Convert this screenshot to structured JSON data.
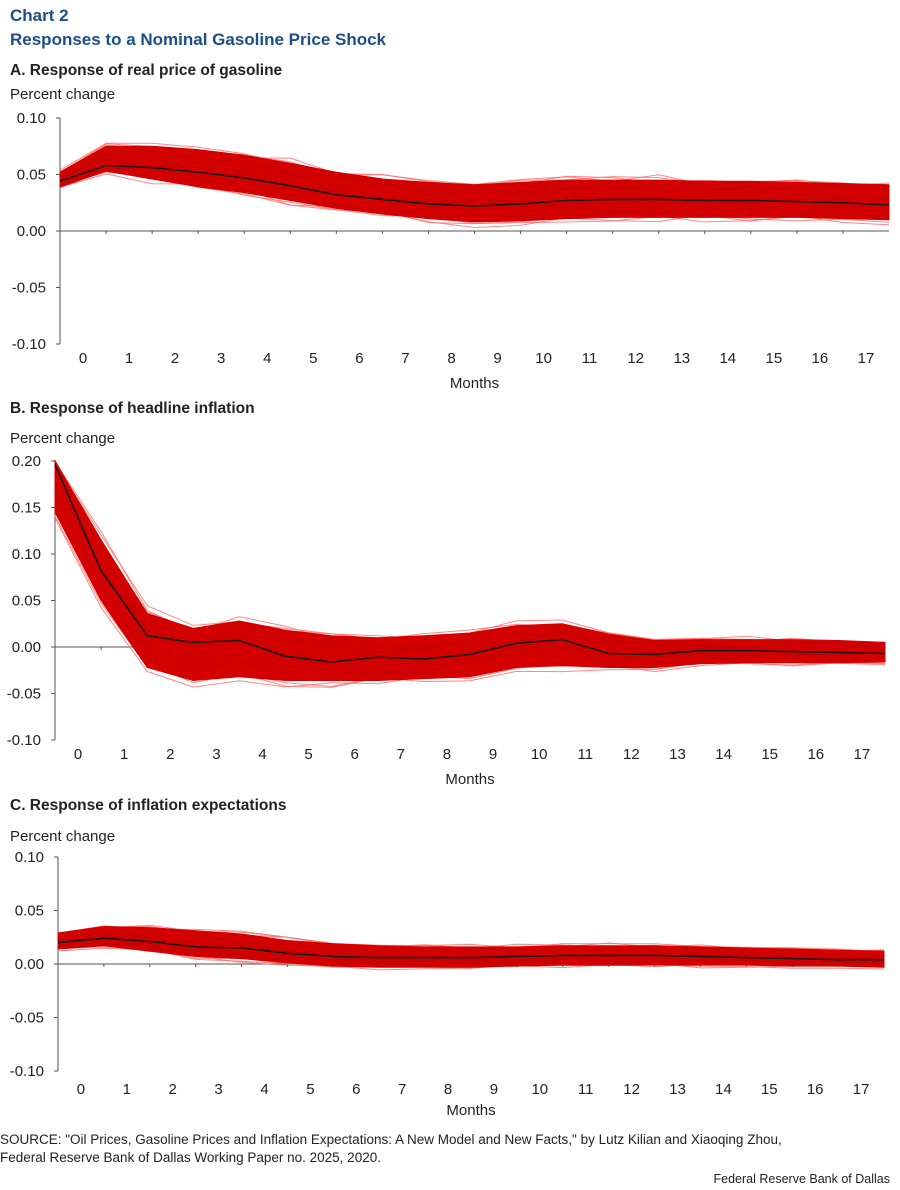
{
  "header": {
    "label": "Chart 2",
    "title": "Responses to a Nominal Gasoline Price Shock"
  },
  "colors": {
    "band": "#d40000",
    "band_edge": "#ff6a6a",
    "median": "#1a1a1a",
    "title": "#1d4e89",
    "axis": "#555555"
  },
  "chart_data": [
    {
      "type": "area",
      "panel_title": "A. Response of real price of gasoline",
      "ylabel": "Percent change",
      "xlabel": "Months",
      "ylim": [
        -0.1,
        0.1
      ],
      "yticks": [
        "0.10",
        "0.05",
        "0.00",
        "-0.05",
        "-0.10"
      ],
      "x": [
        0,
        1,
        2,
        3,
        4,
        5,
        6,
        7,
        8,
        9,
        10,
        11,
        12,
        13,
        14,
        15,
        16,
        17,
        18
      ],
      "xtick_labels": [
        "0",
        "1",
        "2",
        "3",
        "4",
        "5",
        "6",
        "7",
        "8",
        "9",
        "10",
        "11",
        "12",
        "13",
        "14",
        "15",
        "16",
        "17"
      ],
      "series": [
        {
          "role": "median",
          "values": [
            0.044,
            0.058,
            0.056,
            0.052,
            0.047,
            0.04,
            0.032,
            0.028,
            0.024,
            0.022,
            0.024,
            0.027,
            0.028,
            0.028,
            0.027,
            0.027,
            0.026,
            0.025,
            0.023
          ]
        },
        {
          "role": "band_upper",
          "values": [
            0.052,
            0.075,
            0.075,
            0.072,
            0.067,
            0.06,
            0.052,
            0.046,
            0.043,
            0.041,
            0.043,
            0.045,
            0.045,
            0.045,
            0.044,
            0.044,
            0.043,
            0.042,
            0.041
          ]
        },
        {
          "role": "band_lower",
          "values": [
            0.039,
            0.053,
            0.046,
            0.039,
            0.034,
            0.027,
            0.02,
            0.015,
            0.011,
            0.008,
            0.009,
            0.011,
            0.012,
            0.012,
            0.012,
            0.012,
            0.012,
            0.011,
            0.01
          ]
        }
      ]
    },
    {
      "type": "area",
      "panel_title": "B. Response of headline inflation",
      "ylabel": "Percent change",
      "xlabel": "Months",
      "ylim": [
        -0.1,
        0.2
      ],
      "yticks": [
        "0.20",
        "0.15",
        "0.10",
        "0.05",
        "0.00",
        "-0.05",
        "-0.10"
      ],
      "x": [
        0,
        1,
        2,
        3,
        4,
        5,
        6,
        7,
        8,
        9,
        10,
        11,
        12,
        13,
        14,
        15,
        16,
        17,
        18
      ],
      "xtick_labels": [
        "0",
        "1",
        "2",
        "3",
        "4",
        "5",
        "6",
        "7",
        "8",
        "9",
        "10",
        "11",
        "12",
        "13",
        "14",
        "15",
        "16",
        "17"
      ],
      "series": [
        {
          "role": "median",
          "values": [
            0.196,
            0.082,
            0.012,
            0.005,
            0.007,
            -0.01,
            -0.016,
            -0.011,
            -0.013,
            -0.008,
            0.004,
            0.008,
            -0.007,
            -0.008,
            -0.004,
            -0.004,
            -0.005,
            -0.006,
            -0.007
          ]
        },
        {
          "role": "band_upper",
          "values": [
            0.2,
            0.115,
            0.036,
            0.02,
            0.028,
            0.018,
            0.012,
            0.01,
            0.012,
            0.015,
            0.023,
            0.025,
            0.014,
            0.007,
            0.008,
            0.008,
            0.008,
            0.007,
            0.005
          ]
        },
        {
          "role": "band_lower",
          "values": [
            0.145,
            0.05,
            -0.022,
            -0.036,
            -0.032,
            -0.036,
            -0.036,
            -0.036,
            -0.034,
            -0.032,
            -0.022,
            -0.02,
            -0.022,
            -0.022,
            -0.018,
            -0.017,
            -0.017,
            -0.017,
            -0.016
          ]
        }
      ]
    },
    {
      "type": "area",
      "panel_title": "C. Response of inflation expectations",
      "ylabel": "Percent change",
      "xlabel": "Months",
      "ylim": [
        -0.1,
        0.1
      ],
      "yticks": [
        "0.10",
        "0.05",
        "0.00",
        "-0.05",
        "-0.10"
      ],
      "x": [
        0,
        1,
        2,
        3,
        4,
        5,
        6,
        7,
        8,
        9,
        10,
        11,
        12,
        13,
        14,
        15,
        16,
        17,
        18
      ],
      "xtick_labels": [
        "0",
        "1",
        "2",
        "3",
        "4",
        "5",
        "6",
        "7",
        "8",
        "9",
        "10",
        "11",
        "12",
        "13",
        "14",
        "15",
        "16",
        "17"
      ],
      "series": [
        {
          "role": "median",
          "values": [
            0.02,
            0.024,
            0.021,
            0.016,
            0.015,
            0.01,
            0.007,
            0.006,
            0.006,
            0.006,
            0.007,
            0.008,
            0.008,
            0.008,
            0.007,
            0.006,
            0.005,
            0.004,
            0.004
          ]
        },
        {
          "role": "band_upper",
          "values": [
            0.029,
            0.035,
            0.034,
            0.031,
            0.028,
            0.022,
            0.019,
            0.017,
            0.016,
            0.016,
            0.016,
            0.017,
            0.017,
            0.017,
            0.016,
            0.015,
            0.014,
            0.013,
            0.012
          ]
        },
        {
          "role": "band_lower",
          "values": [
            0.014,
            0.017,
            0.012,
            0.007,
            0.005,
            0.001,
            -0.002,
            -0.003,
            -0.003,
            -0.003,
            -0.002,
            -0.001,
            -0.001,
            -0.001,
            -0.001,
            -0.001,
            -0.002,
            -0.002,
            -0.003
          ]
        }
      ]
    }
  ],
  "footer": {
    "source_line1": "SOURCE: \"Oil Prices, Gasoline Prices and Inflation  Expectations: A New Model and New Facts,\" by Lutz Kilian and Xiaoqing Zhou,",
    "source_line2": "Federal Reserve Bank of Dallas Working Paper no. 2025, 2020.",
    "credit": "Federal  Reserve  Bank of Dallas"
  }
}
